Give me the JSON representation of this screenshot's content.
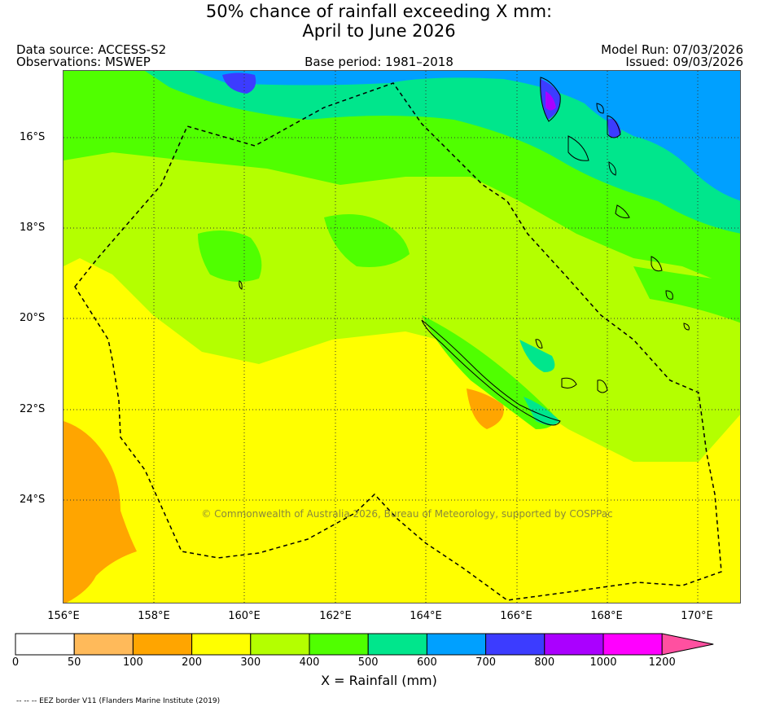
{
  "title_line1": "50% chance of rainfall exceeding X mm:",
  "title_line2": "April to June 2026",
  "data_source": "Data source: ACCESS-S2",
  "observations": "Observations: MSWEP",
  "base_period": "Base period: 1981–2018",
  "model_run": "Model Run: 07/03/2026",
  "issued": "Issued: 09/03/2026",
  "copyright": "© Commonwealth of Australia 2026, Bureau of Meteorology, supported by COSPPac",
  "lat_labels": [
    "16°S",
    "18°S",
    "20°S",
    "22°S",
    "24°S"
  ],
  "lon_labels": [
    "156°E",
    "158°E",
    "160°E",
    "162°E",
    "164°E",
    "166°E",
    "168°E",
    "170°E"
  ],
  "colorbar": {
    "labels": [
      "0",
      "50",
      "100",
      "200",
      "300",
      "400",
      "500",
      "600",
      "700",
      "800",
      "1000",
      "1200"
    ],
    "colors": [
      "#ffffff",
      "#ffba5a",
      "#ffa500",
      "#ffff00",
      "#b4ff00",
      "#50ff00",
      "#00e68c",
      "#00a0ff",
      "#3c3cff",
      "#aa00ff",
      "#ff00ff",
      "#ff50a0"
    ],
    "xlabel": "X = Rainfall (mm)"
  },
  "legend_note": "-- -- -- EEZ border V11 (Flanders Marine Institute (2019)"
}
